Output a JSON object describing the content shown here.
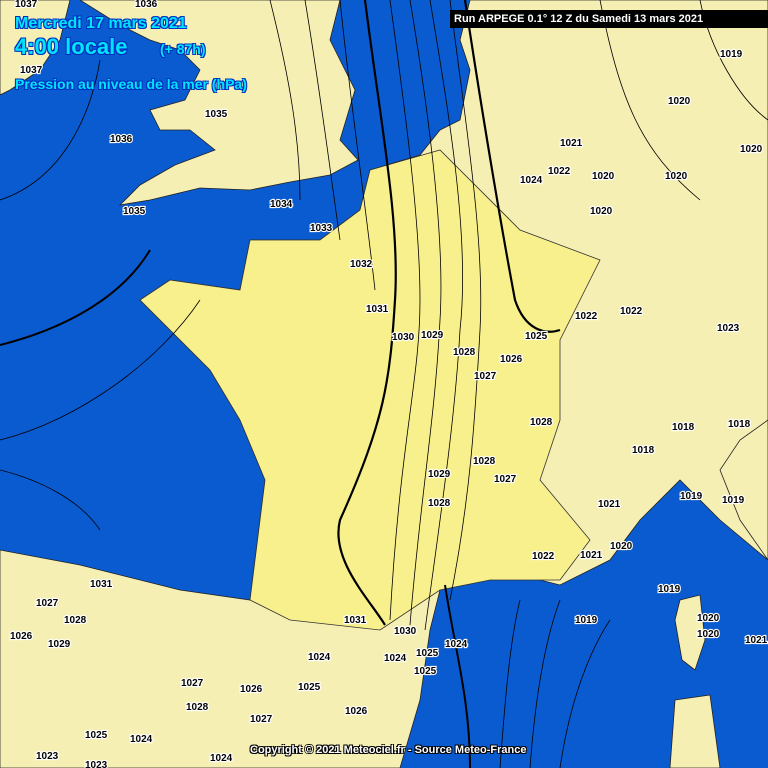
{
  "header": {
    "date": "Mercredi 17 mars 2021",
    "time": "4:00 locale",
    "lead": "(+ 87h)",
    "parameter": "Pression au niveau de la mer (hPa)",
    "run": "Run ARPEGE 0.1° 12 Z du Samedi 13 mars 2021"
  },
  "footer": {
    "copyright": "Copyright © 2021 Meteociel.fr - Source Meteo-France"
  },
  "colors": {
    "sea": "#0a5bd0",
    "land": "#f6efb4",
    "france": "#f8f08c",
    "isobar": "#000000",
    "title": "#00e5ff"
  },
  "isobar_labels": [
    "1037",
    "1036",
    "1037",
    "1035",
    "1036",
    "1035",
    "1034",
    "1033",
    "1032",
    "1031",
    "1030",
    "1029",
    "1028",
    "1027",
    "1026",
    "1025",
    "1024",
    "1022",
    "1021",
    "1020",
    "1020",
    "1020",
    "1019",
    "1020",
    "1020",
    "1022",
    "1022",
    "1023",
    "1028",
    "1028",
    "1029",
    "1027",
    "1028",
    "1022",
    "1021",
    "1020",
    "1019",
    "1019",
    "1019",
    "1019",
    "1018",
    "1018",
    "1018",
    "1031",
    "1031",
    "1030",
    "1024",
    "1025",
    "1024",
    "1025",
    "1024",
    "1026",
    "1025",
    "1028",
    "1027",
    "1029",
    "1028",
    "1027",
    "1026",
    "1027",
    "1026",
    "1025",
    "1024",
    "1023",
    "1023",
    "1024",
    "1021",
    "1020",
    "1020",
    "1021"
  ]
}
